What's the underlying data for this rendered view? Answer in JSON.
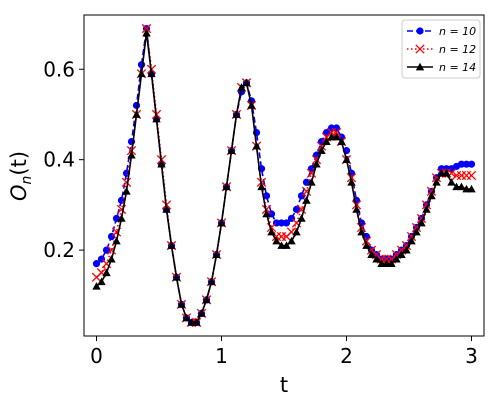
{
  "chart_data": {
    "type": "line",
    "xlabel": "t",
    "ylabel": "O_n(t)",
    "xlim": [
      -0.1,
      3.1
    ],
    "ylim": [
      0.01,
      0.72
    ],
    "xticks": [
      0,
      1,
      2,
      3
    ],
    "yticks": [
      0.2,
      0.4,
      0.6
    ],
    "xtick_labels": [
      "0",
      "1",
      "2",
      "3"
    ],
    "ytick_labels": [
      "0.2",
      "0.4",
      "0.6"
    ],
    "grid": false,
    "legend_position": "top-right",
    "x": [
      0.0,
      0.04,
      0.08,
      0.12,
      0.16,
      0.2,
      0.24,
      0.28,
      0.32,
      0.36,
      0.4,
      0.44,
      0.48,
      0.52,
      0.56,
      0.6,
      0.64,
      0.68,
      0.72,
      0.76,
      0.8,
      0.84,
      0.88,
      0.92,
      0.96,
      1.0,
      1.04,
      1.08,
      1.12,
      1.16,
      1.2,
      1.24,
      1.28,
      1.32,
      1.36,
      1.4,
      1.44,
      1.48,
      1.52,
      1.56,
      1.6,
      1.64,
      1.68,
      1.72,
      1.76,
      1.8,
      1.84,
      1.88,
      1.92,
      1.96,
      2.0,
      2.04,
      2.08,
      2.12,
      2.16,
      2.2,
      2.24,
      2.28,
      2.32,
      2.36,
      2.4,
      2.44,
      2.48,
      2.52,
      2.56,
      2.6,
      2.64,
      2.68,
      2.72,
      2.76,
      2.8,
      2.84,
      2.88,
      2.92,
      2.96,
      3.0
    ],
    "series": [
      {
        "name": "n = 10",
        "color": "#0000ff",
        "linestyle": "dashed",
        "marker": "circle",
        "values": [
          0.17,
          0.18,
          0.2,
          0.23,
          0.27,
          0.31,
          0.37,
          0.44,
          0.52,
          0.61,
          0.69,
          0.59,
          0.49,
          0.39,
          0.29,
          0.21,
          0.14,
          0.08,
          0.05,
          0.04,
          0.04,
          0.06,
          0.09,
          0.13,
          0.19,
          0.26,
          0.34,
          0.42,
          0.5,
          0.55,
          0.57,
          0.53,
          0.46,
          0.38,
          0.32,
          0.28,
          0.26,
          0.26,
          0.26,
          0.27,
          0.29,
          0.32,
          0.35,
          0.38,
          0.41,
          0.44,
          0.46,
          0.47,
          0.47,
          0.45,
          0.42,
          0.37,
          0.31,
          0.26,
          0.23,
          0.2,
          0.19,
          0.18,
          0.18,
          0.18,
          0.19,
          0.2,
          0.21,
          0.23,
          0.25,
          0.27,
          0.3,
          0.33,
          0.36,
          0.38,
          0.38,
          0.38,
          0.385,
          0.39,
          0.39,
          0.39
        ]
      },
      {
        "name": "n = 12",
        "color": "#ff0000",
        "linestyle": "dotted",
        "marker": "x",
        "values": [
          0.14,
          0.15,
          0.17,
          0.2,
          0.24,
          0.29,
          0.35,
          0.42,
          0.5,
          0.59,
          0.69,
          0.6,
          0.5,
          0.4,
          0.3,
          0.21,
          0.14,
          0.08,
          0.05,
          0.04,
          0.04,
          0.06,
          0.09,
          0.13,
          0.19,
          0.26,
          0.34,
          0.42,
          0.5,
          0.56,
          0.57,
          0.52,
          0.43,
          0.35,
          0.29,
          0.25,
          0.23,
          0.23,
          0.23,
          0.24,
          0.26,
          0.29,
          0.33,
          0.37,
          0.4,
          0.43,
          0.45,
          0.46,
          0.46,
          0.44,
          0.4,
          0.36,
          0.3,
          0.25,
          0.22,
          0.2,
          0.19,
          0.18,
          0.18,
          0.18,
          0.19,
          0.2,
          0.21,
          0.23,
          0.25,
          0.27,
          0.3,
          0.33,
          0.36,
          0.37,
          0.37,
          0.37,
          0.365,
          0.365,
          0.365,
          0.365
        ]
      },
      {
        "name": "n = 14",
        "color": "#000000",
        "linestyle": "solid",
        "marker": "triangle",
        "values": [
          0.12,
          0.13,
          0.15,
          0.18,
          0.22,
          0.27,
          0.33,
          0.41,
          0.5,
          0.59,
          0.68,
          0.59,
          0.49,
          0.39,
          0.29,
          0.21,
          0.14,
          0.08,
          0.05,
          0.04,
          0.04,
          0.06,
          0.09,
          0.13,
          0.19,
          0.26,
          0.34,
          0.42,
          0.5,
          0.56,
          0.57,
          0.52,
          0.43,
          0.34,
          0.28,
          0.24,
          0.22,
          0.21,
          0.21,
          0.22,
          0.24,
          0.27,
          0.31,
          0.35,
          0.39,
          0.42,
          0.44,
          0.45,
          0.45,
          0.44,
          0.4,
          0.35,
          0.29,
          0.24,
          0.21,
          0.19,
          0.18,
          0.17,
          0.17,
          0.17,
          0.18,
          0.19,
          0.2,
          0.22,
          0.24,
          0.26,
          0.29,
          0.32,
          0.35,
          0.37,
          0.37,
          0.35,
          0.34,
          0.34,
          0.335,
          0.335
        ]
      }
    ]
  }
}
